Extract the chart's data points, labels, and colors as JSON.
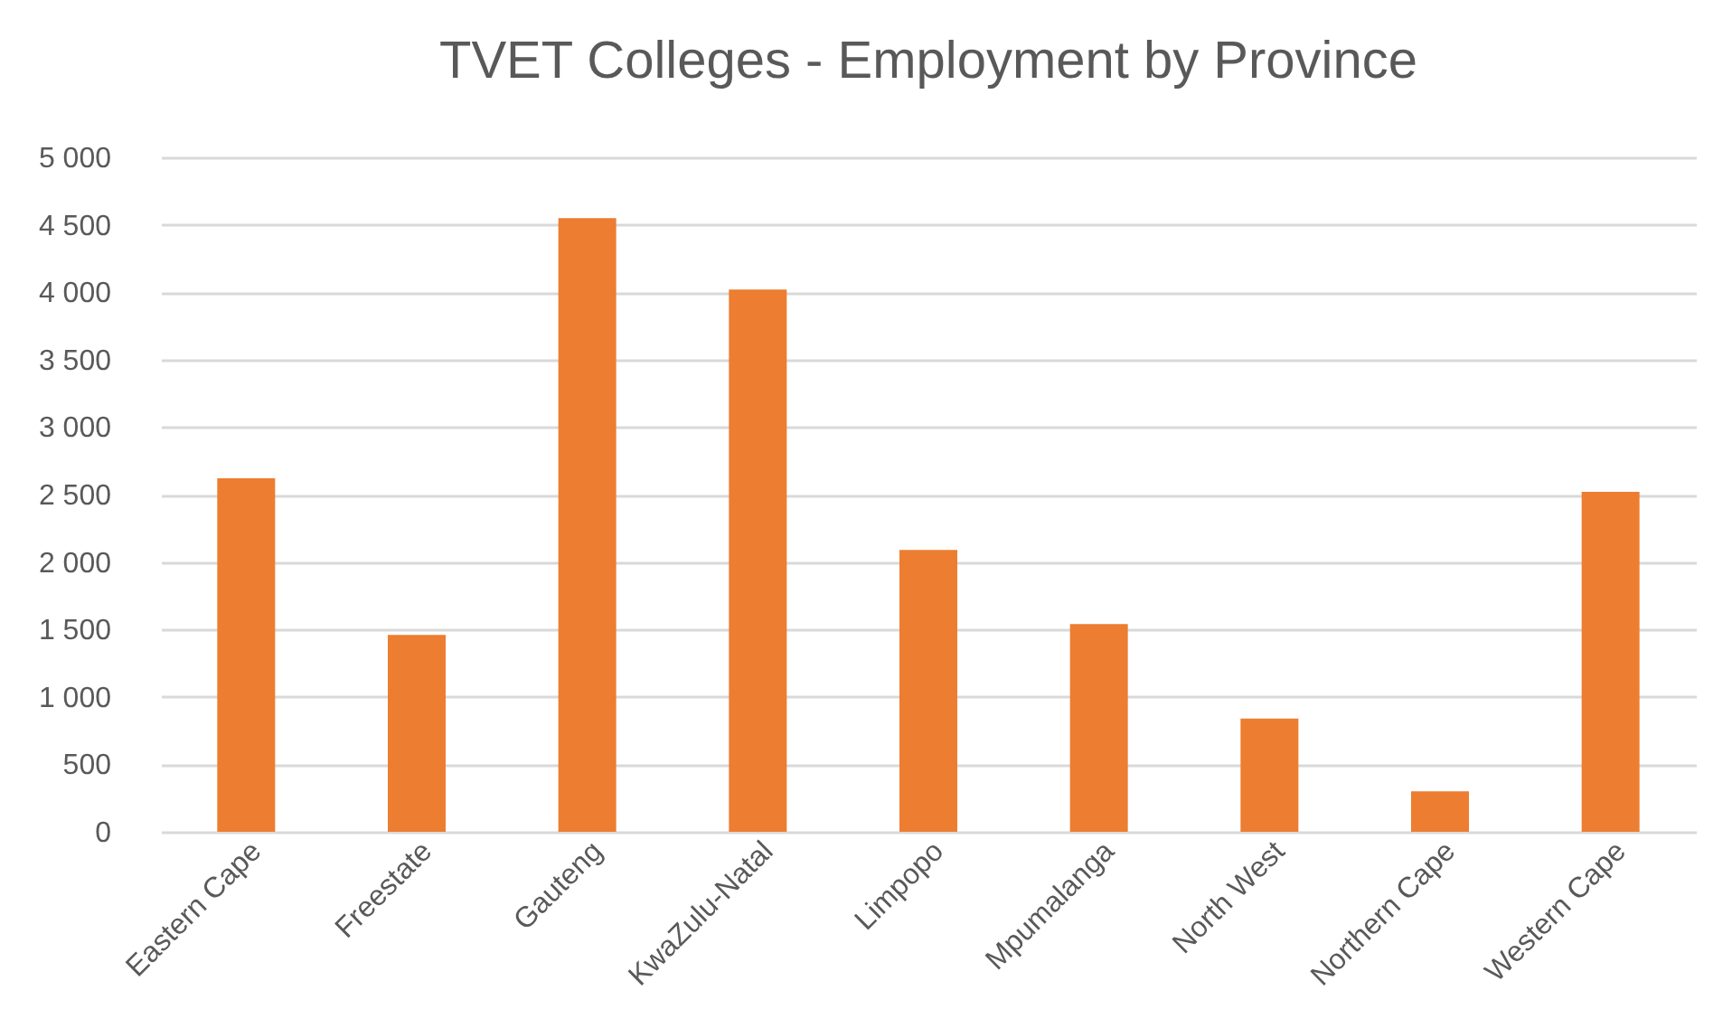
{
  "chart_data": {
    "type": "bar",
    "title": "TVET Colleges - Employment by Province",
    "categories": [
      "Eastern Cape",
      "Freestate",
      "Gauteng",
      "KwaZulu-Natal",
      "Limpopo",
      "Mpumalanga",
      "North West",
      "Northern Cape",
      "Western Cape"
    ],
    "values": [
      2620,
      1460,
      4550,
      4020,
      2090,
      1540,
      840,
      300,
      2520
    ],
    "color": "#ed7d31",
    "ylim": [
      0,
      5000
    ],
    "yticks": [
      0,
      500,
      {
        "value": 1000,
        "label": "1 000"
      },
      {
        "value": 1500,
        "label": "1 500"
      },
      {
        "value": 2000,
        "label": "2 000"
      },
      {
        "value": 2500,
        "label": "2 500"
      },
      {
        "value": 3000,
        "label": "3 000"
      },
      {
        "value": 3500,
        "label": "3 500"
      },
      {
        "value": 4000,
        "label": "4 000"
      },
      {
        "value": 4500,
        "label": "4 500"
      },
      {
        "value": 5000,
        "label": "5 000"
      }
    ],
    "grid": "y",
    "legend": false
  }
}
